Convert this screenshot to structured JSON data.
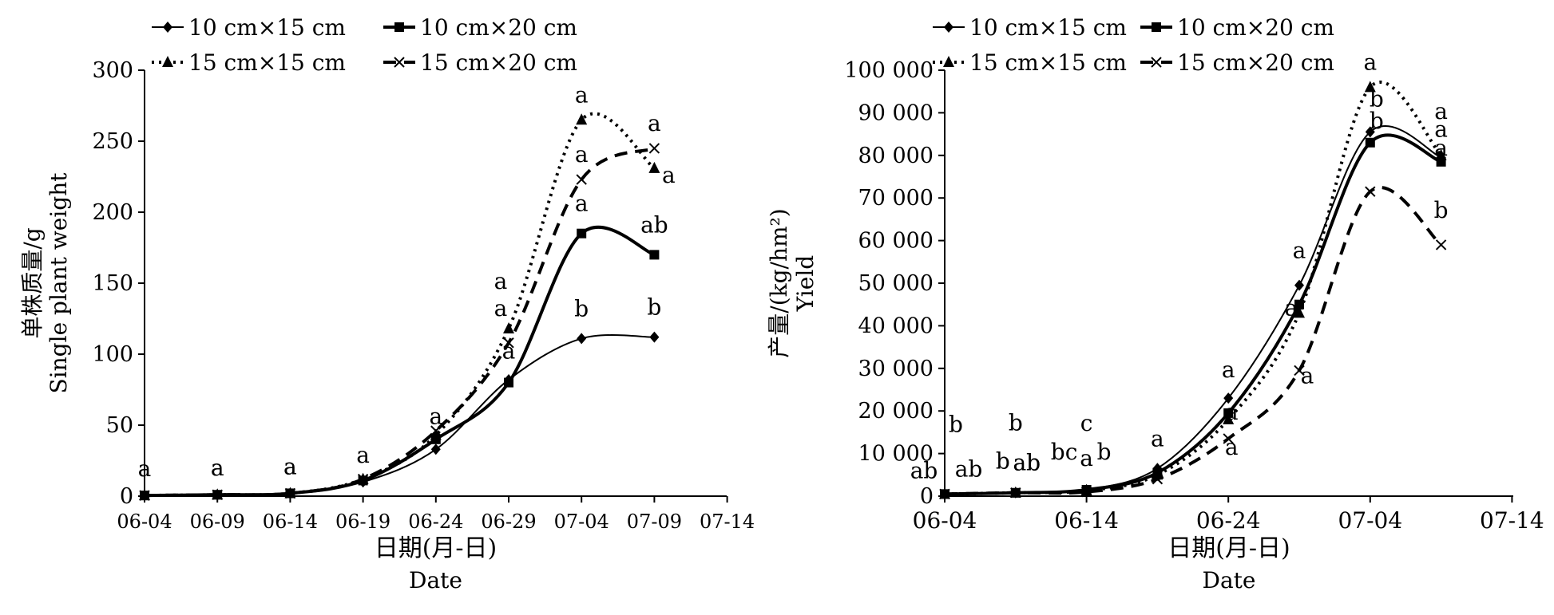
{
  "chart_data": [
    {
      "type": "line",
      "xlabel_cn": "日期(月-日)",
      "xlabel_en": "Date",
      "ylabel_cn": "单株质量/g",
      "ylabel_en": "Single plant weight",
      "x_ticks": [
        "06-04",
        "06-09",
        "06-14",
        "06-19",
        "06-24",
        "06-29",
        "07-04",
        "07-09",
        "07-14"
      ],
      "y_ticks": [
        "0",
        "50",
        "100",
        "150",
        "200",
        "250",
        "300"
      ],
      "ylim": [
        0,
        300
      ],
      "x": [
        "06-04",
        "06-09",
        "06-14",
        "06-19",
        "06-24",
        "06-29",
        "07-04",
        "07-09"
      ],
      "series": [
        {
          "name": "10 cm×15 cm",
          "style": "solid-thin",
          "marker": "diamond",
          "values": [
            0.5,
            1,
            2,
            10,
            33,
            82,
            111,
            112
          ]
        },
        {
          "name": "10 cm×20 cm",
          "style": "solid-thick",
          "marker": "square",
          "values": [
            0.5,
            1,
            2,
            11,
            40,
            80,
            185,
            170
          ]
        },
        {
          "name": "15 cm×15 cm",
          "style": "dotted",
          "marker": "triangle",
          "values": [
            0.5,
            1,
            2,
            12,
            43,
            118,
            265,
            231
          ]
        },
        {
          "name": "15 cm×20 cm",
          "style": "dashed",
          "marker": "x",
          "values": [
            0.5,
            1,
            2,
            12,
            46,
            108,
            223,
            245
          ]
        }
      ],
      "annotations": [
        "a",
        "a",
        "a",
        "a",
        "a",
        "a",
        "a",
        "a",
        "a",
        "a",
        "a",
        "a",
        "a",
        "b",
        "ab",
        "a",
        "a",
        "b"
      ]
    },
    {
      "type": "line",
      "xlabel_cn": "日期(月-日)",
      "xlabel_en": "Date",
      "ylabel_cn": "产量/(kg/hm²)",
      "ylabel_en": "Yield",
      "x_ticks": [
        "06-04",
        "06-14",
        "06-24",
        "07-04",
        "07-14"
      ],
      "y_ticks": [
        "0",
        "10 000",
        "20 000",
        "30 000",
        "40 000",
        "50 000",
        "60 000",
        "70 000",
        "80 000",
        "90 000",
        "100 000"
      ],
      "ylim": [
        0,
        100000
      ],
      "x": [
        "06-04",
        "06-09",
        "06-14",
        "06-19",
        "06-24",
        "06-29",
        "07-04",
        "07-09"
      ],
      "series": [
        {
          "name": "10 cm×15 cm",
          "style": "solid-thin",
          "marker": "diamond",
          "values": [
            500,
            800,
            1500,
            6500,
            23000,
            49500,
            85500,
            79500
          ]
        },
        {
          "name": "10 cm×20 cm",
          "style": "solid-thick",
          "marker": "square",
          "values": [
            500,
            800,
            1500,
            5500,
            19500,
            45000,
            83000,
            78500
          ]
        },
        {
          "name": "15 cm×15 cm",
          "style": "dotted",
          "marker": "triangle",
          "values": [
            500,
            800,
            1300,
            5000,
            18000,
            43000,
            96000,
            80000
          ]
        },
        {
          "name": "15 cm×20 cm",
          "style": "dashed",
          "marker": "x",
          "values": [
            500,
            800,
            1000,
            4000,
            13500,
            29500,
            71500,
            59000
          ]
        }
      ],
      "annotations": [
        "b",
        "ab",
        "ab",
        "b",
        "b",
        "ab",
        "ab",
        "c",
        "bc",
        "a",
        "b",
        "a",
        "a",
        "a",
        "a",
        "a",
        "a",
        "a",
        "a",
        "b",
        "b",
        "a",
        "a",
        "a",
        "b"
      ]
    }
  ]
}
